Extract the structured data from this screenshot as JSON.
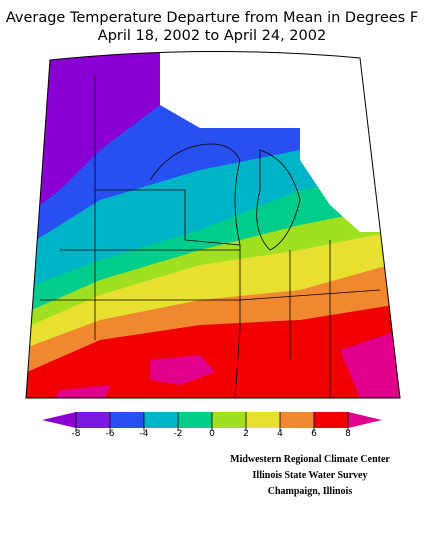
{
  "title": [
    "Average Temperature Departure from Mean in Degrees F",
    "April 18, 2002 to April 24, 2002"
  ],
  "legend": {
    "ticks": [
      -8,
      -6,
      -4,
      -2,
      0,
      2,
      4,
      6,
      8
    ],
    "colors": [
      "#8a00d2",
      "#7a1ae0",
      "#2850f0",
      "#00b4c8",
      "#00cc8c",
      "#a0e020",
      "#e8e030",
      "#f08830",
      "#f00000",
      "#e0008c"
    ]
  },
  "credit": [
    "Midwestern Regional Climate Center",
    "Illinois State Water Survey",
    "Champaign, Illinois"
  ]
}
